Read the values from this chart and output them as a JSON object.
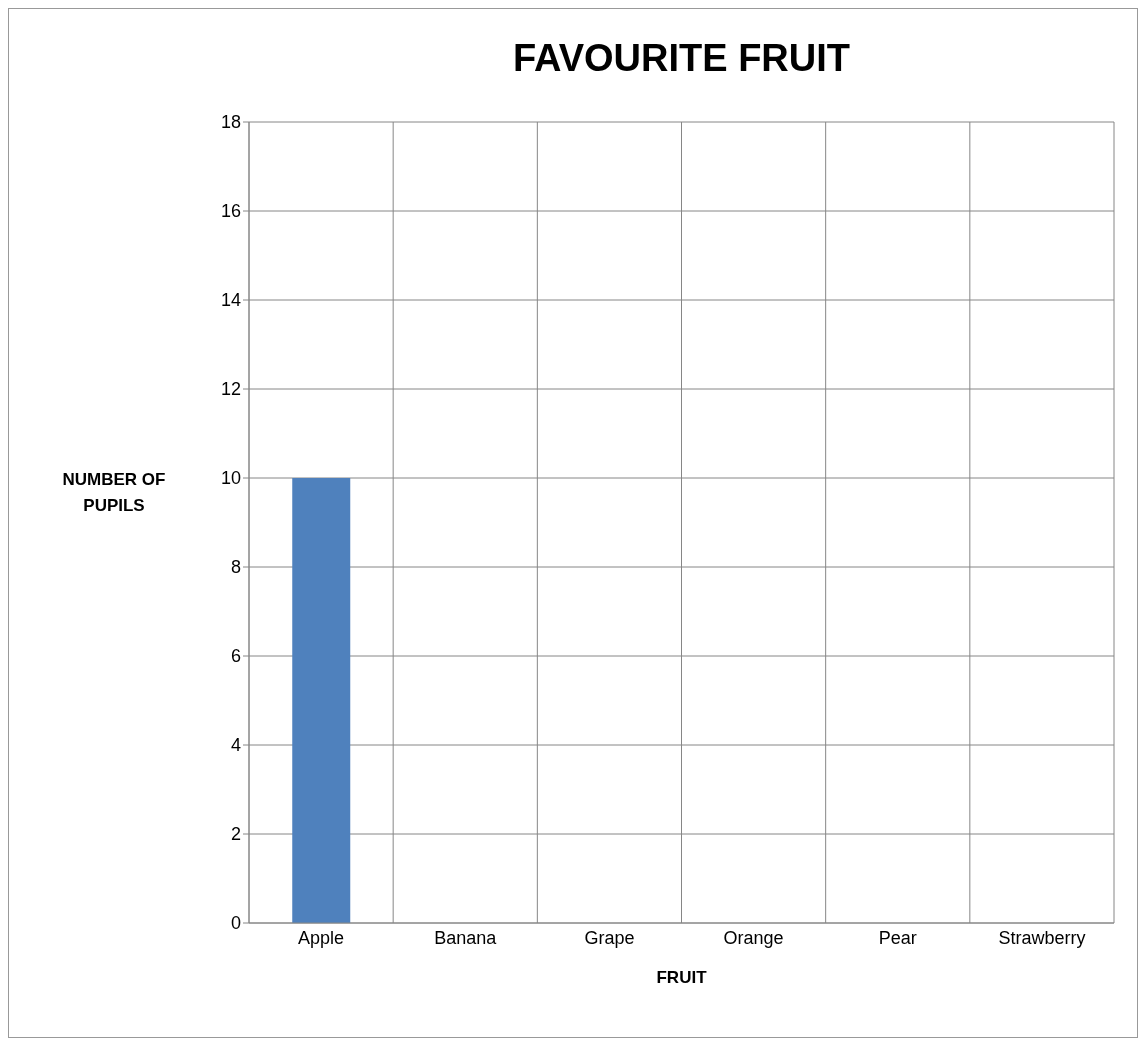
{
  "chart_data": {
    "type": "bar",
    "title": "FAVOURITE FRUIT",
    "xlabel": "FRUIT",
    "ylabel": "NUMBER OF PUPILS",
    "categories": [
      "Apple",
      "Banana",
      "Grape",
      "Orange",
      "Pear",
      "Strawberry"
    ],
    "values": [
      10,
      0,
      0,
      0,
      0,
      0
    ],
    "color": "#4f81bd",
    "ylim": [
      0,
      18
    ],
    "yticks": [
      0,
      2,
      4,
      6,
      8,
      10,
      12,
      14,
      16,
      18
    ],
    "grid": true
  }
}
